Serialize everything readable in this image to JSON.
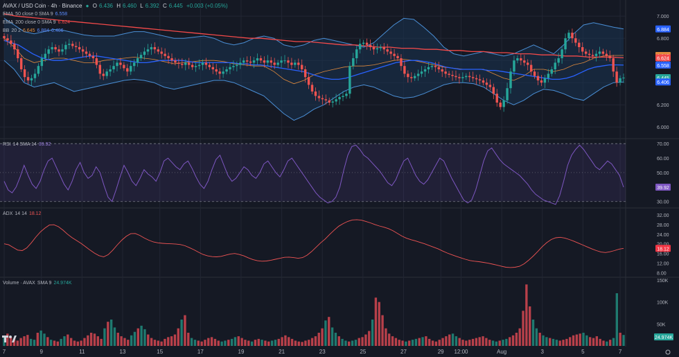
{
  "header": {
    "title": "AVAX / USD Coin · 4h · Binance",
    "ohlc": {
      "o_label": "O",
      "o": "6.436",
      "h_label": "H",
      "h": "6.460",
      "l_label": "L",
      "l": "6.392",
      "c_label": "C",
      "c": "6.445",
      "change": "+0.003 (+0.05%)"
    }
  },
  "legends": {
    "ema50": {
      "name": "EMA",
      "params": "50 close 0 SMA 9",
      "value": "6.558"
    },
    "ema200": {
      "name": "EMA",
      "params": "200 close 0 SMA 9",
      "value": "6.624"
    },
    "bb": {
      "name": "BB",
      "params": "20 2",
      "values": [
        "6.645",
        "6.884",
        "6.406"
      ]
    },
    "rsi": {
      "name": "RSI",
      "params": "14 SMA 14",
      "value": "39.92"
    },
    "adx": {
      "name": "ADX",
      "params": "14 14",
      "value": "18.12"
    },
    "volume": {
      "name": "Volume · AVAX",
      "params": "SMA 9",
      "value": "24.974K"
    }
  },
  "colors": {
    "bg": "#151924",
    "up": "#26a69a",
    "down": "#ef5350",
    "up_vol": "#1f7a70",
    "down_vol": "#b8404a",
    "ema50": "#2962ff",
    "ema200": "#f44a4a",
    "bb_basis": "#e08a3c",
    "bb_band": "#4a8fd6",
    "bb_fill": "#1a3350",
    "rsi": "#7e57c2",
    "adx": "#f05454",
    "grid": "#222633",
    "text": "#b2b5be"
  },
  "time_axis": {
    "labels": [
      {
        "text": "7",
        "i": 0
      },
      {
        "text": "9",
        "i": 11
      },
      {
        "text": "11",
        "i": 23
      },
      {
        "text": "13",
        "i": 35
      },
      {
        "text": "15",
        "i": 46
      },
      {
        "text": "17",
        "i": 58
      },
      {
        "text": "19",
        "i": 70
      },
      {
        "text": "21",
        "i": 82
      },
      {
        "text": "23",
        "i": 94
      },
      {
        "text": "25",
        "i": 106
      },
      {
        "text": "27",
        "i": 118
      },
      {
        "text": "29",
        "i": 129
      },
      {
        "text": "12:00",
        "i": 135
      },
      {
        "text": "Aug",
        "i": 147
      },
      {
        "text": "3",
        "i": 159
      },
      {
        "text": "5",
        "i": 171
      },
      {
        "text": "7",
        "i": 182
      }
    ],
    "bar_count": 184
  },
  "price_axis": {
    "ticks": [
      "7.000",
      "6.800",
      "6.600",
      "6.400",
      "6.200",
      "6.000"
    ],
    "badges": [
      {
        "label": "6.884",
        "value": 6.884,
        "color": "#2962ff"
      },
      {
        "label": "6.645",
        "value": 6.645,
        "color": "#e08a3c"
      },
      {
        "label": "6.624",
        "value": 6.624,
        "color": "#f44a4a"
      },
      {
        "label": "6.558",
        "value": 6.558,
        "color": "#2962ff"
      },
      {
        "label": "6.445",
        "value": 6.445,
        "color": "#26a69a"
      },
      {
        "label": "6.406",
        "value": 6.406,
        "color": "#2962ff"
      }
    ]
  },
  "rsi_axis": {
    "ticks": [
      "70.00",
      "60.00",
      "50.00",
      "40.00",
      "30.00"
    ],
    "badge": "39.92"
  },
  "adx_axis": {
    "ticks": [
      "32.00",
      "28.00",
      "24.00",
      "20.00",
      "16.00",
      "12.00",
      "8.00"
    ],
    "badge": "18.12"
  },
  "vol_axis": {
    "ticks": [
      "150K",
      "100K",
      "50K"
    ],
    "badge": "24.974K"
  },
  "chart_data": {
    "type": "candlestick",
    "price": {
      "ylim": [
        5.92,
        7.12
      ],
      "closes": [
        6.8,
        6.78,
        6.75,
        6.7,
        6.62,
        6.52,
        6.45,
        6.42,
        6.44,
        6.48,
        6.55,
        6.62,
        6.66,
        6.7,
        6.72,
        6.7,
        6.68,
        6.7,
        6.74,
        6.75,
        6.73,
        6.72,
        6.7,
        6.68,
        6.66,
        6.64,
        6.62,
        6.56,
        6.48,
        6.46,
        6.5,
        6.52,
        6.55,
        6.58,
        6.56,
        6.53,
        6.5,
        6.55,
        6.58,
        6.62,
        6.65,
        6.68,
        6.7,
        6.72,
        6.7,
        6.68,
        6.66,
        6.64,
        6.62,
        6.6,
        6.58,
        6.57,
        6.56,
        6.58,
        6.56,
        6.54,
        6.55,
        6.56,
        6.58,
        6.56,
        6.54,
        6.52,
        6.5,
        6.48,
        6.5,
        6.52,
        6.54,
        6.55,
        6.56,
        6.58,
        6.6,
        6.59,
        6.58,
        6.6,
        6.62,
        6.6,
        6.58,
        6.6,
        6.58,
        6.56,
        6.58,
        6.6,
        6.6,
        6.58,
        6.56,
        6.58,
        6.56,
        6.52,
        6.45,
        6.38,
        6.32,
        6.28,
        6.26,
        6.25,
        6.24,
        6.22,
        6.23,
        6.25,
        6.27,
        6.28,
        6.3,
        6.55,
        6.62,
        6.7,
        6.75,
        6.76,
        6.74,
        6.72,
        6.7,
        6.71,
        6.72,
        6.7,
        6.68,
        6.66,
        6.64,
        6.62,
        6.55,
        6.48,
        6.45,
        6.44,
        6.46,
        6.48,
        6.5,
        6.52,
        6.54,
        6.55,
        6.54,
        6.52,
        6.5,
        6.48,
        6.47,
        6.46,
        6.45,
        6.44,
        6.45,
        6.46,
        6.45,
        6.44,
        6.43,
        6.42,
        6.4,
        6.38,
        6.36,
        6.3,
        6.22,
        6.18,
        6.24,
        6.35,
        6.5,
        6.6,
        6.62,
        6.6,
        6.58,
        6.56,
        6.5,
        6.46,
        6.42,
        6.4,
        6.44,
        6.48,
        6.52,
        6.58,
        6.62,
        6.7,
        6.8,
        6.85,
        6.8,
        6.76,
        6.72,
        6.68,
        6.66,
        6.65,
        6.64,
        6.66,
        6.68,
        6.66,
        6.64,
        6.62,
        6.5,
        6.4,
        6.44,
        6.445
      ],
      "ema50": [
        6.78,
        6.76,
        6.74,
        6.7,
        6.66,
        6.63,
        6.61,
        6.6,
        6.6,
        6.61,
        6.62,
        6.63,
        6.64,
        6.64,
        6.63,
        6.62,
        6.61,
        6.6,
        6.59,
        6.58,
        6.58,
        6.59,
        6.6,
        6.6,
        6.6,
        6.6,
        6.59,
        6.58,
        6.58,
        6.58,
        6.58,
        6.58,
        6.58,
        6.57,
        6.57,
        6.56,
        6.56,
        6.55,
        6.54,
        6.53,
        6.52,
        6.51,
        6.5,
        6.48,
        6.46,
        6.44,
        6.43,
        6.43,
        6.44,
        6.46,
        6.48,
        6.5,
        6.52,
        6.54,
        6.56,
        6.58,
        6.59,
        6.6,
        6.6,
        6.59,
        6.58,
        6.56,
        6.54,
        6.53,
        6.52,
        6.52,
        6.52,
        6.52,
        6.51,
        6.51,
        6.5,
        6.49,
        6.48,
        6.47,
        6.46,
        6.45,
        6.44,
        6.43,
        6.43,
        6.44,
        6.46,
        6.49,
        6.52,
        6.54,
        6.55,
        6.56,
        6.56,
        6.558
      ],
      "ema200": [
        7.02,
        7.0,
        6.99,
        6.98,
        6.97,
        6.96,
        6.95,
        6.94,
        6.93,
        6.92,
        6.91,
        6.9,
        6.89,
        6.88,
        6.87,
        6.86,
        6.85,
        6.84,
        6.83,
        6.82,
        6.81,
        6.8,
        6.8,
        6.79,
        6.78,
        6.77,
        6.77,
        6.76,
        6.75,
        6.74,
        6.74,
        6.73,
        6.72,
        6.72,
        6.71,
        6.71,
        6.7,
        6.7,
        6.69,
        6.69,
        6.68,
        6.68,
        6.67,
        6.67,
        6.66,
        6.66,
        6.65,
        6.65,
        6.64,
        6.64,
        6.63,
        6.63,
        6.63,
        6.624
      ],
      "bb_upper": [
        6.98,
        6.92,
        6.86,
        6.84,
        6.86,
        6.88,
        6.87,
        6.85,
        6.83,
        6.82,
        6.82,
        6.82,
        6.84,
        6.86,
        6.86,
        6.84,
        6.82,
        6.8,
        6.8,
        6.81,
        6.82,
        6.8,
        6.76,
        6.74,
        6.76,
        6.8,
        6.82,
        6.8,
        6.74,
        6.72,
        6.74,
        6.78,
        6.8,
        6.78,
        6.76,
        6.74,
        6.72,
        6.76,
        6.84,
        6.92,
        6.98,
        6.97,
        6.9,
        6.82,
        6.72,
        6.66,
        6.64,
        6.66,
        6.68,
        6.66,
        6.64,
        6.66,
        6.7,
        6.74,
        6.7,
        6.66,
        6.74,
        6.84,
        6.92,
        6.94,
        6.92,
        6.9,
        6.884
      ],
      "bb_lower": [
        6.6,
        6.52,
        6.4,
        6.36,
        6.38,
        6.4,
        6.36,
        6.32,
        6.34,
        6.36,
        6.38,
        6.4,
        6.42,
        6.43,
        6.42,
        6.4,
        6.36,
        6.34,
        6.36,
        6.38,
        6.4,
        6.42,
        6.42,
        6.4,
        6.36,
        6.32,
        6.28,
        6.2,
        6.12,
        6.06,
        6.1,
        6.16,
        6.2,
        6.26,
        6.32,
        6.36,
        6.38,
        6.36,
        6.32,
        6.28,
        6.26,
        6.27,
        6.3,
        6.34,
        6.38,
        6.4,
        6.4,
        6.39,
        6.36,
        6.3,
        6.24,
        6.2,
        6.24,
        6.3,
        6.34,
        6.33,
        6.3,
        6.26,
        6.24,
        6.3,
        6.36,
        6.4,
        6.406
      ],
      "bb_basis": [
        6.8,
        6.72,
        6.62,
        6.58,
        6.6,
        6.62,
        6.62,
        6.6,
        6.58,
        6.58,
        6.6,
        6.61,
        6.62,
        6.63,
        6.62,
        6.61,
        6.59,
        6.57,
        6.58,
        6.59,
        6.6,
        6.6,
        6.59,
        6.57,
        6.56,
        6.55,
        6.55,
        6.5,
        6.43,
        6.39,
        6.42,
        6.47,
        6.5,
        6.52,
        6.54,
        6.55,
        6.55,
        6.56,
        6.58,
        6.6,
        6.61,
        6.6,
        6.58,
        6.56,
        6.54,
        6.53,
        6.52,
        6.52,
        6.52,
        6.48,
        6.44,
        6.42,
        6.46,
        6.52,
        6.52,
        6.5,
        6.52,
        6.56,
        6.58,
        6.62,
        6.64,
        6.645,
        6.645
      ]
    },
    "rsi": {
      "ylim": [
        27,
        72
      ],
      "values": [
        44,
        38,
        36,
        40,
        47,
        55,
        48,
        42,
        39,
        44,
        52,
        58,
        60,
        54,
        48,
        42,
        38,
        44,
        52,
        57,
        50,
        46,
        48,
        54,
        50,
        41,
        33,
        30,
        38,
        47,
        55,
        50,
        44,
        41,
        46,
        52,
        49,
        47,
        44,
        50,
        58,
        60,
        57,
        54,
        52,
        56,
        58,
        53,
        47,
        42,
        39,
        44,
        52,
        59,
        62,
        55,
        48,
        44,
        46,
        50,
        54,
        52,
        48,
        46,
        50,
        56,
        58,
        54,
        50,
        47,
        52,
        58,
        60,
        56,
        52,
        48,
        44,
        40,
        36,
        33,
        31,
        29,
        30,
        33,
        40,
        52,
        62,
        68,
        69,
        66,
        62,
        60,
        57,
        54,
        51,
        47,
        43,
        41,
        45,
        52,
        58,
        60,
        54,
        48,
        44,
        42,
        45,
        50,
        55,
        60,
        58,
        52,
        46,
        41,
        36,
        31,
        29,
        31,
        38,
        48,
        58,
        65,
        67,
        63,
        59,
        56,
        54,
        52,
        50,
        48,
        45,
        42,
        38,
        35,
        33,
        31,
        30,
        29,
        28,
        34,
        44,
        55,
        62,
        66,
        69,
        66,
        62,
        58,
        54,
        52,
        55,
        58,
        56,
        52,
        48,
        39.92
      ]
    },
    "adx": {
      "ylim": [
        7,
        34
      ],
      "values": [
        20,
        19.6,
        18.5,
        17.4,
        17.2,
        18.3,
        20.4,
        22.8,
        24.9,
        26.5,
        27.8,
        27.9,
        27.1,
        25.7,
        24,
        22.6,
        21.4,
        20.2,
        18.8,
        17.4,
        16.1,
        15.1,
        14.6,
        15.5,
        17.3,
        19.5,
        21.5,
        23.1,
        24.2,
        24.3,
        23.5,
        22.4,
        21.5,
        20.8,
        20.4,
        20.2,
        20.1,
        20,
        19.9,
        19.7,
        19.2,
        18.4,
        17.5,
        16.5,
        15.6,
        15,
        14.7,
        14.6,
        14.8,
        15.3,
        15.8,
        16,
        15.6,
        15,
        14.2,
        13.5,
        13,
        12.8,
        12.9,
        13.2,
        13.6,
        14,
        14.4,
        14.5,
        14.3,
        14,
        14.3,
        15.3,
        16.8,
        18.6,
        20.4,
        22,
        23.9,
        25.7,
        27.3,
        28.4,
        29.3,
        29.9,
        30,
        29.8,
        29.3,
        28.7,
        28,
        27.4,
        26.9,
        26.3,
        25.4,
        24.3,
        23.2,
        22.3,
        21.7,
        21.2,
        20.6,
        20,
        19.3,
        18.6,
        17.9,
        17,
        16.2,
        15.5,
        14.8,
        14.2,
        13.6,
        13.1,
        12.8,
        12.6,
        12.3,
        12,
        11.6,
        11.2,
        10.7,
        10.3,
        10.2,
        10.3,
        10.7,
        11.7,
        13.2,
        14.9,
        16.8,
        18.8,
        20.5,
        21.8,
        22.5,
        22.7,
        22.4,
        21.8,
        21.1,
        20.3,
        19.5,
        18.7,
        17.9,
        17.2,
        16.6,
        16.4,
        16.7,
        17.2,
        17.8,
        18.12
      ]
    },
    "volume": {
      "ylim": [
        0,
        150
      ],
      "values": [
        22,
        28,
        20,
        15,
        12,
        18,
        22,
        25,
        16,
        14,
        30,
        35,
        28,
        20,
        14,
        12,
        10,
        16,
        22,
        26,
        18,
        12,
        10,
        12,
        18,
        24,
        30,
        28,
        22,
        16,
        40,
        55,
        60,
        42,
        30,
        22,
        18,
        14,
        24,
        32,
        40,
        46,
        38,
        26,
        18,
        14,
        12,
        10,
        16,
        20,
        22,
        26,
        40,
        60,
        70,
        30,
        18,
        14,
        12,
        10,
        14,
        18,
        20,
        16,
        12,
        10,
        12,
        14,
        16,
        20,
        22,
        18,
        14,
        12,
        10,
        14,
        16,
        14,
        12,
        10,
        12,
        14,
        16,
        20,
        24,
        20,
        16,
        12,
        10,
        9,
        12,
        14,
        18,
        22,
        30,
        40,
        58,
        66,
        42,
        30,
        22,
        16,
        12,
        10,
        12,
        14,
        18,
        20,
        26,
        34,
        60,
        110,
        100,
        70,
        40,
        28,
        22,
        18,
        14,
        12,
        10,
        12,
        14,
        16,
        18,
        20,
        22,
        16,
        12,
        10,
        14,
        18,
        22,
        26,
        28,
        22,
        18,
        14,
        12,
        14,
        16,
        18,
        20,
        22,
        18,
        14,
        12,
        10,
        12,
        14,
        16,
        20,
        24,
        30,
        40,
        80,
        140,
        90,
        60,
        40,
        30,
        24,
        20,
        18,
        16,
        14,
        12,
        14,
        16,
        20,
        24,
        26,
        28,
        30,
        24,
        20,
        18,
        22,
        16,
        12,
        10,
        14,
        18,
        120,
        30,
        24.974
      ],
      "sma_label": "24.974K"
    }
  }
}
